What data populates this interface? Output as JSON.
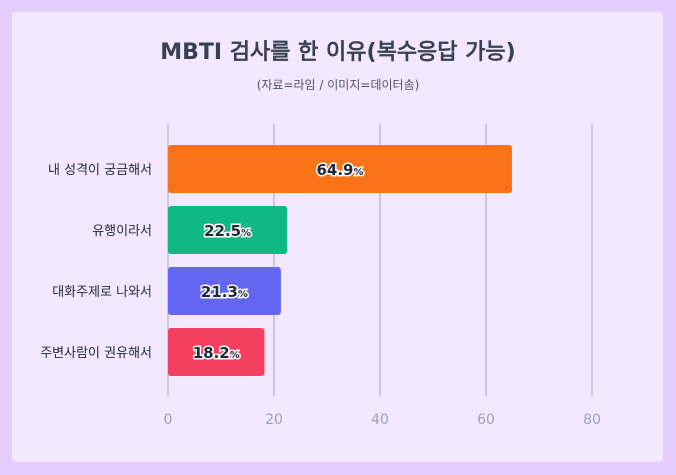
{
  "chart_data": {
    "type": "bar",
    "orientation": "horizontal",
    "title": "MBTI 검사를 한 이유(복수응답 가능)",
    "subtitle": "(자료=라임 / 이미지=데이터솜)",
    "categories": [
      "내 성격이 궁금해서",
      "유행이라서",
      "대화주제로 나와서",
      "주변사람이 권유해서"
    ],
    "values": [
      64.9,
      22.5,
      21.3,
      18.2
    ],
    "value_labels": [
      "64.9",
      "22.5",
      "21.3",
      "18.2"
    ],
    "value_suffix": "%",
    "colors": [
      "#f97316",
      "#10b981",
      "#6366f1",
      "#f43f5e"
    ],
    "xlim": [
      0,
      80
    ],
    "xticks": [
      "0",
      "20",
      "40",
      "60",
      "80"
    ],
    "xtick_values": [
      0,
      20,
      40,
      60,
      80
    ],
    "grid": true,
    "legend": "none"
  }
}
